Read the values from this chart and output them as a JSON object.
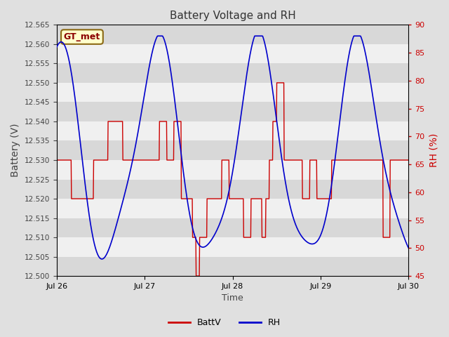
{
  "title": "Battery Voltage and RH",
  "xlabel": "Time",
  "ylabel_left": "Battery (V)",
  "ylabel_right": "RH (%)",
  "ylim_left": [
    12.5,
    12.565
  ],
  "ylim_right": [
    45,
    90
  ],
  "yticks_left": [
    12.5,
    12.505,
    12.51,
    12.515,
    12.52,
    12.525,
    12.53,
    12.535,
    12.54,
    12.545,
    12.55,
    12.555,
    12.56,
    12.565
  ],
  "yticks_right": [
    45,
    50,
    55,
    60,
    65,
    70,
    75,
    80,
    85,
    90
  ],
  "xtick_labels": [
    "Jul 26",
    "Jul 27",
    "Jul 28",
    "Jul 29",
    "Jul 30"
  ],
  "legend_labels": [
    "BattV",
    "RH"
  ],
  "legend_colors": [
    "#cc0000",
    "#0000cc"
  ],
  "watermark_text": "GT_met",
  "watermark_bg": "#ffffcc",
  "watermark_fg": "#8b0000",
  "watermark_border": "#8b6914",
  "band_color_light": "#f0f0f0",
  "band_color_dark": "#d8d8d8",
  "batt_color": "#cc0000",
  "rh_color": "#0000cc",
  "title_color": "#333333",
  "axis_label_color": "#444444",
  "right_tick_color": "#cc0000",
  "fig_facecolor": "#e0e0e0"
}
